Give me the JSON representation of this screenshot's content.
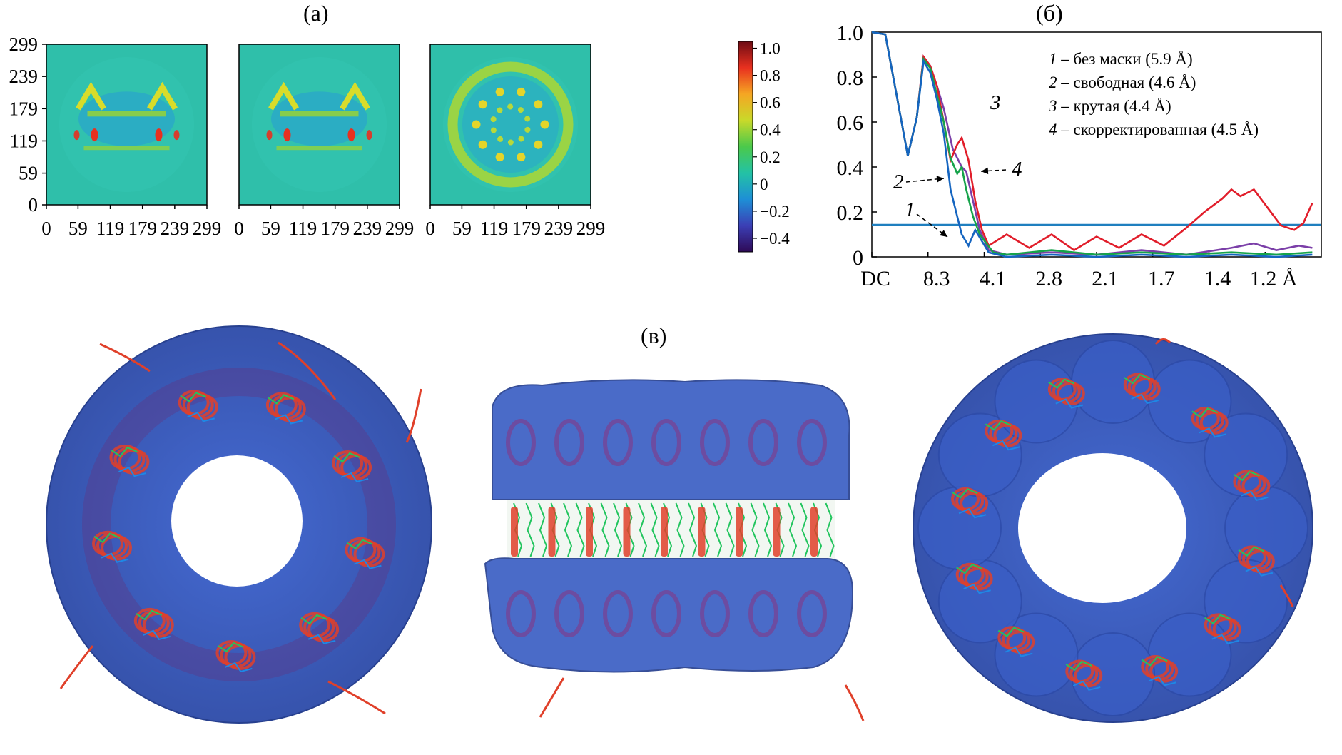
{
  "panels": {
    "a": {
      "label": "(а)"
    },
    "b": {
      "label": "(б)"
    },
    "c": {
      "label": "(в)"
    }
  },
  "colors": {
    "map_background": "#2fbfaa",
    "fsc_threshold_line": "#1f7fbf",
    "series_1": "#1565c0",
    "series_2": "#16a34a",
    "series_3": "#7b3fa8",
    "series_4": "#e11d2a",
    "density_surface": "#3a5fc8",
    "helix": "#e0402a",
    "ligand_green": "#22c55e",
    "ligand_blue": "#1e88e5"
  },
  "chart_data": [
    {
      "type": "heatmap",
      "id": "map-1",
      "x_ticks": [
        "0",
        "59",
        "119",
        "179",
        "239",
        "299"
      ],
      "y_ticks": [
        "0",
        "59",
        "119",
        "179",
        "239",
        "299"
      ],
      "xlim": [
        0,
        299
      ],
      "ylim": [
        0,
        299
      ],
      "pattern": "side-view-slice"
    },
    {
      "type": "heatmap",
      "id": "map-2",
      "x_ticks": [
        "0",
        "59",
        "119",
        "179",
        "239",
        "299"
      ],
      "xlim": [
        0,
        299
      ],
      "ylim": [
        0,
        299
      ],
      "pattern": "side-view-slice"
    },
    {
      "type": "heatmap",
      "id": "map-3",
      "x_ticks": [
        "0",
        "59",
        "119",
        "179",
        "239",
        "299"
      ],
      "xlim": [
        0,
        299
      ],
      "ylim": [
        0,
        299
      ],
      "pattern": "top-view-ring"
    },
    {
      "type": "colorbar",
      "id": "colorbar",
      "ticks": [
        "1.0",
        "0.8",
        "0.6",
        "0.4",
        "0.2",
        "0",
        "−0.2",
        "−0.4"
      ],
      "tick_values": [
        1.0,
        0.8,
        0.6,
        0.4,
        0.2,
        0,
        -0.2,
        -0.4
      ],
      "range": [
        -0.5,
        1.05
      ],
      "colormap": [
        "#2e0a56",
        "#3b3fb5",
        "#1e8fd6",
        "#23c2a5",
        "#4bc94b",
        "#c9d92a",
        "#f5a623",
        "#e8301f",
        "#6e0b14"
      ]
    },
    {
      "type": "line",
      "id": "fsc",
      "x_tick_labels": [
        "DC",
        "8.3",
        "4.1",
        "2.8",
        "2.1",
        "1.7",
        "1.4",
        "1.2 Å"
      ],
      "x_tick_positions": [
        0,
        0.125,
        0.25,
        0.375,
        0.5,
        0.625,
        0.75,
        0.875
      ],
      "y_ticks": [
        "0",
        "0.2",
        "0.4",
        "0.6",
        "0.8",
        "1.0"
      ],
      "ylim": [
        0,
        1.0
      ],
      "threshold": 0.143,
      "legend": [
        {
          "num": "1",
          "text": " – без маски (5.9 Å)"
        },
        {
          "num": "2",
          "text": " – свободная (4.6 Å)"
        },
        {
          "num": "3",
          "text": " – крутая (4.4 Å)"
        },
        {
          "num": "4",
          "text": " – скорректированная (4.5 Å)"
        }
      ],
      "annotations": [
        {
          "text": "1",
          "target": "curve-1"
        },
        {
          "text": "2",
          "target": "curve-2"
        },
        {
          "text": "3",
          "target": "curve-3"
        },
        {
          "text": "4",
          "target": "curve-4"
        }
      ],
      "series": [
        {
          "num": "1",
          "color": "#1565c0",
          "x": [
            0,
            0.03,
            0.055,
            0.08,
            0.1,
            0.115,
            0.13,
            0.145,
            0.16,
            0.175,
            0.19,
            0.2,
            0.215,
            0.23,
            0.26,
            0.3,
            0.4,
            0.5,
            0.6,
            0.7,
            0.8,
            0.9,
            0.98
          ],
          "y": [
            1.0,
            0.99,
            0.72,
            0.45,
            0.62,
            0.87,
            0.82,
            0.7,
            0.55,
            0.3,
            0.18,
            0.1,
            0.05,
            0.12,
            0.02,
            0.0,
            0.01,
            0.0,
            0.01,
            0.0,
            0.01,
            0.0,
            0.01
          ]
        },
        {
          "num": "2",
          "color": "#16a34a",
          "x": [
            0,
            0.03,
            0.055,
            0.08,
            0.1,
            0.115,
            0.13,
            0.145,
            0.16,
            0.175,
            0.19,
            0.2,
            0.21,
            0.225,
            0.24,
            0.27,
            0.3,
            0.4,
            0.5,
            0.6,
            0.7,
            0.8,
            0.9,
            0.98
          ],
          "y": [
            1.0,
            0.99,
            0.72,
            0.45,
            0.62,
            0.88,
            0.84,
            0.72,
            0.6,
            0.44,
            0.37,
            0.4,
            0.3,
            0.18,
            0.1,
            0.02,
            0.01,
            0.03,
            0.01,
            0.02,
            0.01,
            0.02,
            0.01,
            0.02
          ]
        },
        {
          "num": "3",
          "color": "#7b3fa8",
          "x": [
            0,
            0.03,
            0.055,
            0.08,
            0.1,
            0.115,
            0.13,
            0.145,
            0.16,
            0.18,
            0.2,
            0.21,
            0.225,
            0.24,
            0.26,
            0.3,
            0.4,
            0.5,
            0.6,
            0.7,
            0.8,
            0.85,
            0.9,
            0.95,
            0.98
          ],
          "y": [
            1.0,
            0.99,
            0.72,
            0.45,
            0.62,
            0.89,
            0.85,
            0.76,
            0.66,
            0.48,
            0.4,
            0.38,
            0.25,
            0.12,
            0.03,
            0.01,
            0.02,
            0.01,
            0.03,
            0.01,
            0.04,
            0.06,
            0.03,
            0.05,
            0.04
          ]
        },
        {
          "num": "4",
          "color": "#e11d2a",
          "x": [
            0,
            0.03,
            0.055,
            0.08,
            0.1,
            0.115,
            0.13,
            0.145,
            0.16,
            0.175,
            0.19,
            0.2,
            0.215,
            0.23,
            0.245,
            0.26,
            0.3,
            0.35,
            0.4,
            0.45,
            0.5,
            0.55,
            0.6,
            0.65,
            0.7,
            0.74,
            0.78,
            0.8,
            0.82,
            0.85,
            0.88,
            0.91,
            0.94,
            0.96,
            0.98
          ],
          "y": [
            1.0,
            0.99,
            0.72,
            0.45,
            0.62,
            0.89,
            0.85,
            0.76,
            0.6,
            0.43,
            0.5,
            0.53,
            0.43,
            0.25,
            0.12,
            0.05,
            0.1,
            0.04,
            0.1,
            0.03,
            0.09,
            0.04,
            0.1,
            0.05,
            0.13,
            0.2,
            0.26,
            0.3,
            0.27,
            0.3,
            0.22,
            0.14,
            0.12,
            0.15,
            0.24
          ]
        }
      ]
    }
  ]
}
